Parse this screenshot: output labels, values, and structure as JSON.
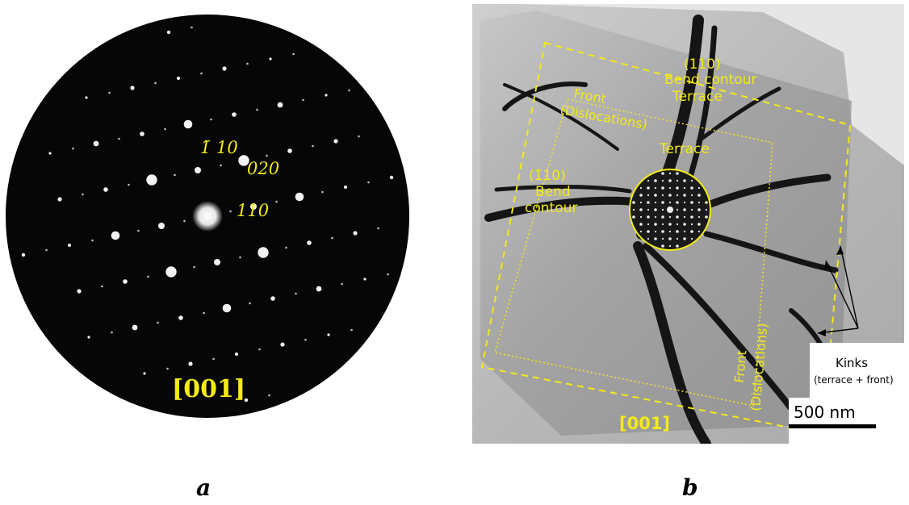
{
  "panel_a": {
    "caption": "a",
    "zone_axis": "[001]",
    "spot_labels": [
      "1̄ 10",
      "020",
      "110"
    ]
  },
  "panel_b": {
    "caption": "b",
    "labels": {
      "top_plane": "(110)",
      "bend_contour_top": "Bend contour",
      "terrace_top": "Terrace",
      "front_top_1": "Front",
      "front_top_2": "(Dislocations)",
      "terrace_mid": "Terrace",
      "left_plane": "(1̄10)",
      "left_bend": "Bend",
      "left_contour": "contour",
      "front_right_1": "Front",
      "front_right_2": "(Dislocations)",
      "zone_axis": "[001]",
      "kinks": "Kinks",
      "kinks_note": "(terrace + front)",
      "scale_bar": "500 nm"
    }
  },
  "colors": {
    "label_yellow": "#f3ea18",
    "background": "#ffffff"
  }
}
